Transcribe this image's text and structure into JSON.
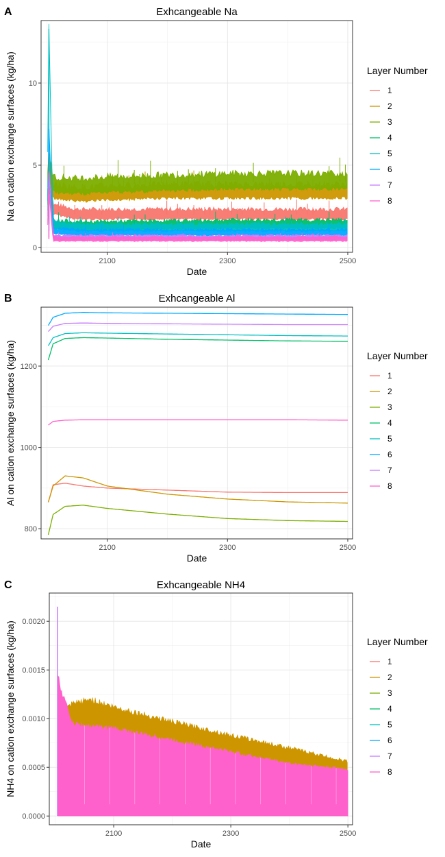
{
  "chart_data": [
    {
      "panel": "A",
      "type": "line",
      "title": "Exhcangeable Na",
      "xlabel": "Date",
      "ylabel": "Na on cation exchange surfaces (kg/ha)",
      "xlim": [
        1990,
        2508
      ],
      "ylim": [
        -0.3,
        13.8
      ],
      "xticks": [
        2100,
        2300,
        2500
      ],
      "yticks": [
        0,
        5,
        10
      ],
      "ytick_labels": [
        "0",
        "5",
        "10"
      ],
      "grid": true,
      "legend": {
        "title": "Layer Number",
        "position": "right"
      },
      "series": [
        {
          "name": "1",
          "color": "#F8766D",
          "x": [
            2001,
            2003,
            2010,
            2050,
            2100,
            2200,
            2300,
            2400,
            2500
          ],
          "y": [
            3.2,
            5.0,
            2.3,
            2.0,
            2.0,
            2.0,
            2.0,
            2.0,
            2.0
          ],
          "band": 0.35
        },
        {
          "name": "2",
          "color": "#CD9600",
          "x": [
            2001,
            2003,
            2010,
            2050,
            2100,
            2200,
            2300,
            2400,
            2500
          ],
          "y": [
            3.0,
            4.8,
            3.4,
            3.2,
            3.3,
            3.4,
            3.4,
            3.4,
            3.4
          ],
          "band": 0.5
        },
        {
          "name": "3",
          "color": "#7CAE00",
          "x": [
            2001,
            2003,
            2010,
            2050,
            2100,
            2200,
            2300,
            2400,
            2500
          ],
          "y": [
            4.0,
            5.4,
            3.8,
            3.7,
            3.8,
            3.9,
            4.0,
            4.0,
            4.0
          ],
          "band": 0.55
        },
        {
          "name": "4",
          "color": "#00BE67",
          "x": [
            2001,
            2003,
            2010,
            2050,
            2100,
            2200,
            2300,
            2400,
            2500
          ],
          "y": [
            2.5,
            4.2,
            1.4,
            1.3,
            1.3,
            1.35,
            1.4,
            1.4,
            1.4
          ],
          "band": 0.3
        },
        {
          "name": "5",
          "color": "#00BFC4",
          "x": [
            2001,
            2003,
            2010,
            2050,
            2100,
            2200,
            2300,
            2400,
            2500
          ],
          "y": [
            6.0,
            13.3,
            1.4,
            1.2,
            1.2,
            1.2,
            1.2,
            1.2,
            1.2
          ],
          "band": 0.25
        },
        {
          "name": "6",
          "color": "#00A9FF",
          "x": [
            2001,
            2003,
            2010,
            2050,
            2100,
            2200,
            2300,
            2400,
            2500
          ],
          "y": [
            3.0,
            7.2,
            1.0,
            0.9,
            0.9,
            0.9,
            0.9,
            0.9,
            0.9
          ],
          "band": 0.2
        },
        {
          "name": "7",
          "color": "#C77CFF",
          "x": [
            2001,
            2003,
            2010,
            2050,
            2100,
            2200,
            2300,
            2400,
            2500
          ],
          "y": [
            2.0,
            4.5,
            0.6,
            0.6,
            0.6,
            0.6,
            0.6,
            0.6,
            0.6
          ],
          "band": 0.15
        },
        {
          "name": "8",
          "color": "#FF61CC",
          "x": [
            2001,
            2003,
            2010,
            2050,
            2100,
            2200,
            2300,
            2400,
            2500
          ],
          "y": [
            1.5,
            3.5,
            0.5,
            0.5,
            0.5,
            0.5,
            0.5,
            0.5,
            0.5
          ],
          "band": 0.15
        }
      ]
    },
    {
      "panel": "B",
      "type": "line",
      "title": "Exhcangeable Al",
      "xlabel": "Date",
      "ylabel": "Al on cation exchange surfaces (kg/ha)",
      "xlim": [
        1990,
        2508
      ],
      "ylim": [
        775,
        1345
      ],
      "xticks": [
        2100,
        2300,
        2500
      ],
      "yticks": [
        800,
        1000,
        1200
      ],
      "ytick_labels": [
        "800",
        "1000",
        "1200"
      ],
      "grid": true,
      "legend": {
        "title": "Layer Number",
        "position": "right"
      },
      "series": [
        {
          "name": "1",
          "color": "#F8766D",
          "x": [
            2002,
            2010,
            2030,
            2060,
            2100,
            2200,
            2300,
            2400,
            2500
          ],
          "y": [
            865,
            908,
            912,
            905,
            900,
            895,
            890,
            889,
            889
          ],
          "band": 0
        },
        {
          "name": "2",
          "color": "#CD9600",
          "x": [
            2002,
            2010,
            2030,
            2060,
            2100,
            2200,
            2300,
            2400,
            2500
          ],
          "y": [
            865,
            905,
            930,
            925,
            905,
            885,
            873,
            866,
            863
          ],
          "band": 0
        },
        {
          "name": "3",
          "color": "#7CAE00",
          "x": [
            2002,
            2010,
            2030,
            2060,
            2100,
            2200,
            2300,
            2400,
            2500
          ],
          "y": [
            785,
            835,
            855,
            858,
            850,
            836,
            825,
            820,
            818
          ],
          "band": 0
        },
        {
          "name": "4",
          "color": "#00BE67",
          "x": [
            2002,
            2010,
            2030,
            2060,
            2100,
            2200,
            2300,
            2400,
            2500
          ],
          "y": [
            1215,
            1255,
            1268,
            1270,
            1269,
            1266,
            1264,
            1262,
            1261
          ],
          "band": 0
        },
        {
          "name": "5",
          "color": "#00BFC4",
          "x": [
            2002,
            2010,
            2030,
            2060,
            2100,
            2200,
            2300,
            2400,
            2500
          ],
          "y": [
            1250,
            1270,
            1280,
            1282,
            1281,
            1279,
            1277,
            1275,
            1274
          ],
          "band": 0
        },
        {
          "name": "6",
          "color": "#00A9FF",
          "x": [
            2002,
            2010,
            2030,
            2060,
            2100,
            2200,
            2300,
            2400,
            2500
          ],
          "y": [
            1300,
            1320,
            1330,
            1332,
            1331,
            1330,
            1329,
            1328,
            1327
          ],
          "band": 0
        },
        {
          "name": "7",
          "color": "#C77CFF",
          "x": [
            2002,
            2010,
            2030,
            2060,
            2100,
            2200,
            2300,
            2400,
            2500
          ],
          "y": [
            1285,
            1298,
            1305,
            1306,
            1305,
            1304,
            1303,
            1302,
            1302
          ],
          "band": 0
        },
        {
          "name": "8",
          "color": "#FF61CC",
          "x": [
            2002,
            2010,
            2030,
            2060,
            2100,
            2200,
            2300,
            2400,
            2500
          ],
          "y": [
            1055,
            1064,
            1067,
            1068,
            1068,
            1068,
            1068,
            1068,
            1067
          ],
          "band": 0
        }
      ]
    },
    {
      "panel": "C",
      "type": "area",
      "title": "Exhcangeable NH4",
      "xlabel": "Date",
      "ylabel": "NH4 on cation exchange surfaces (kg/ha)",
      "xlim": [
        1990,
        2508
      ],
      "ylim": [
        -9e-05,
        0.00229
      ],
      "xticks": [
        2100,
        2300,
        2500
      ],
      "yticks": [
        0,
        0.0005,
        0.001,
        0.0015,
        0.002
      ],
      "ytick_labels": [
        "0.0000",
        "0.0005",
        "0.0010",
        "0.0015",
        "0.0020"
      ],
      "grid": true,
      "legend": {
        "title": "Layer Number",
        "position": "right"
      },
      "series": [
        {
          "name": "1",
          "color": "#F8766D",
          "x": [],
          "y": []
        },
        {
          "name": "2",
          "color": "#CD9600",
          "x": [
            2010,
            2030,
            2060,
            2100,
            2200,
            2300,
            2400,
            2500
          ],
          "y": [
            0.00105,
            0.00115,
            0.0012,
            0.00112,
            0.00097,
            0.00083,
            0.0007,
            0.00056
          ],
          "low": 0.00058
        },
        {
          "name": "3",
          "color": "#7CAE00",
          "x": [],
          "y": []
        },
        {
          "name": "4",
          "color": "#00BE67",
          "x": [],
          "y": []
        },
        {
          "name": "5",
          "color": "#00BFC4",
          "x": [],
          "y": []
        },
        {
          "name": "6",
          "color": "#00A9FF",
          "x": [
            2050,
            2090,
            2130,
            2175,
            2220,
            2260,
            2305,
            2350,
            2395,
            2440,
            2485
          ],
          "y": [
            0.00035,
            0.00037,
            0.00033,
            0.00033,
            0.0003,
            0.0003,
            0.00026,
            0.00023,
            0.00022,
            0.0002,
            0.00019
          ]
        },
        {
          "name": "7",
          "color": "#C77CFF",
          "x": [
            2004,
            2007
          ],
          "y": [
            0.00215,
            0.0013
          ]
        },
        {
          "name": "8",
          "color": "#FF61CC",
          "x": [
            2005,
            2010,
            2030,
            2060,
            2100,
            2200,
            2300,
            2400,
            2500
          ],
          "y": [
            0.00145,
            0.0013,
            0.00095,
            0.00092,
            0.0009,
            0.00078,
            0.00066,
            0.00054,
            0.00048
          ],
          "low": 0.0002
        }
      ]
    }
  ]
}
